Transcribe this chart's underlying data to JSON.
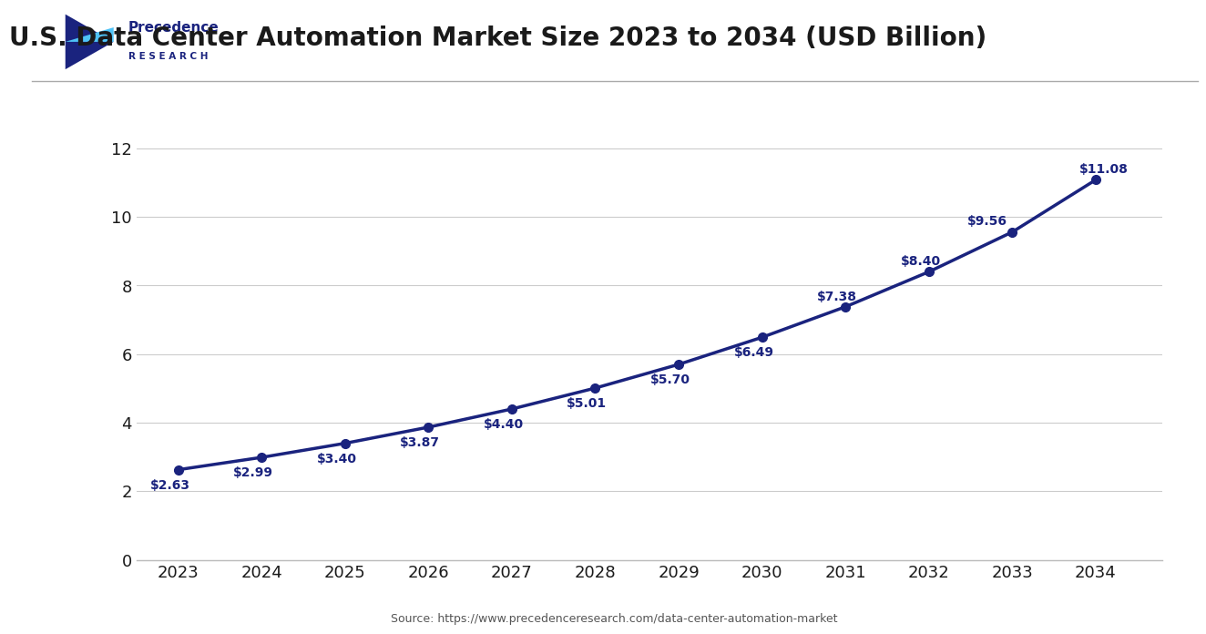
{
  "title": "U.S. Data Center Automation Market Size 2023 to 2034 (USD Billion)",
  "years": [
    2023,
    2024,
    2025,
    2026,
    2027,
    2028,
    2029,
    2030,
    2031,
    2032,
    2033,
    2034
  ],
  "values": [
    2.63,
    2.99,
    3.4,
    3.87,
    4.4,
    5.01,
    5.7,
    6.49,
    7.38,
    8.4,
    9.56,
    11.08
  ],
  "labels": [
    "$2.63",
    "$2.99",
    "$3.40",
    "$3.87",
    "$4.40",
    "$5.01",
    "$5.70",
    "$6.49",
    "$7.38",
    "$8.40",
    "$9.56",
    "$11.08"
  ],
  "label_offsets_x": [
    -0.1,
    -0.1,
    -0.1,
    -0.1,
    -0.1,
    -0.1,
    -0.1,
    -0.1,
    -0.1,
    -0.1,
    -0.3,
    0.1
  ],
  "label_offsets_y": [
    -0.45,
    -0.45,
    -0.45,
    -0.45,
    -0.45,
    -0.45,
    -0.45,
    -0.45,
    0.3,
    0.3,
    0.3,
    0.3
  ],
  "line_color": "#1a237e",
  "marker_color": "#1a237e",
  "bg_color": "#ffffff",
  "plot_bg_color": "#ffffff",
  "ylim": [
    0,
    13
  ],
  "yticks": [
    0,
    2,
    4,
    6,
    8,
    10,
    12
  ],
  "grid_color": "#cccccc",
  "source_text": "Source: https://www.precedenceresearch.com/data-center-automation-market",
  "title_color": "#1a1a1a",
  "tick_color": "#1a1a1a",
  "label_fontsize": 10,
  "title_fontsize": 20,
  "axis_fontsize": 13,
  "logo_text1": "Precedence",
  "logo_text2": "R E S E A R C H",
  "logo_color": "#1a237e",
  "logo_accent": "#4fc3f7",
  "separator_color": "#aaaaaa",
  "source_color": "#555555"
}
